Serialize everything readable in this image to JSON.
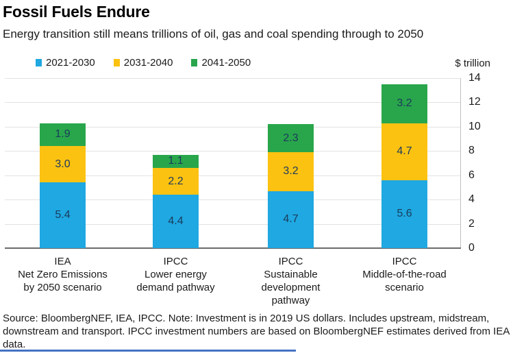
{
  "header": {
    "title": "Fossil Fuels Endure",
    "subtitle": "Energy transition still means trillions of oil, gas and coal spending through to 2050"
  },
  "axis_unit_label": "$ trillion",
  "chart_data": {
    "type": "bar",
    "stacked": true,
    "orientation": "vertical",
    "title": "Fossil Fuels Endure",
    "subtitle": "Energy transition still means trillions of oil, gas and coal spending through to 2050",
    "categories": [
      [
        "IEA",
        "Net Zero Emissions",
        "by 2050 scenario"
      ],
      [
        "IPCC",
        "Lower energy",
        "demand pathway"
      ],
      [
        "IPCC",
        "Sustainable",
        "development",
        "pathway"
      ],
      [
        "IPCC",
        "Middle-of-the-road",
        "scenario"
      ]
    ],
    "series": [
      {
        "name": "2021-2030",
        "color": "#1fa8e1",
        "values": [
          5.4,
          4.4,
          4.7,
          5.6
        ]
      },
      {
        "name": "2031-2040",
        "color": "#fcc211",
        "values": [
          3.0,
          2.2,
          3.2,
          4.7
        ]
      },
      {
        "name": "2041-2050",
        "color": "#29a64b",
        "values": [
          1.9,
          1.1,
          2.3,
          3.2
        ]
      }
    ],
    "totals": [
      10.3,
      7.7,
      10.2,
      13.5
    ],
    "xlabel": "",
    "ylabel": "$ trillion",
    "ylim": [
      0,
      14
    ],
    "yticks": [
      0,
      2,
      4,
      6,
      8,
      10,
      12,
      14
    ],
    "y_axis_side": "right",
    "grid": true,
    "legend_position": "top-left",
    "value_labels": "inside",
    "value_label_decimals": 1
  },
  "footer": {
    "text": "Source: BloombergNEF, IEA, IPCC. Note: Investment is in 2019 US dollars. Includes upstream, midstream, downstream and transport. IPCC investment numbers are based on BloombergNEF estimates derived from IEA data."
  },
  "colors": {
    "value_label": "#1b3a5c",
    "gridline": "#e2e2e2",
    "axis_line_right": "#bfbfbf",
    "axis_line_bottom": "#6b6b6b",
    "text": "#1a1a1a",
    "divider_blue": "#4472c4"
  }
}
